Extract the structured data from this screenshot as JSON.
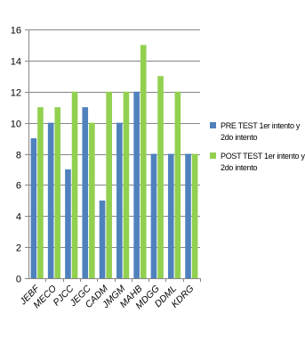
{
  "chart_data": {
    "type": "bar",
    "categories": [
      "JEBF",
      "MECO",
      "PJCC",
      "JEGC",
      "CADM",
      "JMGM",
      "MAHB",
      "MDGG",
      "DDML",
      "KDRG"
    ],
    "series": [
      {
        "name_line1": "PRE TEST 1er intento y",
        "name_line2": "2do intento",
        "color": "#4f81bd",
        "values": [
          9,
          10,
          7,
          11,
          5,
          10,
          12,
          8,
          8,
          8
        ]
      },
      {
        "name_line1": "POST TEST 1er intento y",
        "name_line2": "2do intento",
        "color": "#92d050",
        "values": [
          11,
          11,
          12,
          10,
          12,
          12,
          15,
          13,
          12,
          8
        ]
      }
    ],
    "ylim": [
      0,
      16
    ],
    "yticks": [
      0,
      2,
      4,
      6,
      8,
      10,
      12,
      14,
      16
    ],
    "grid": true,
    "legend_position": "right"
  }
}
